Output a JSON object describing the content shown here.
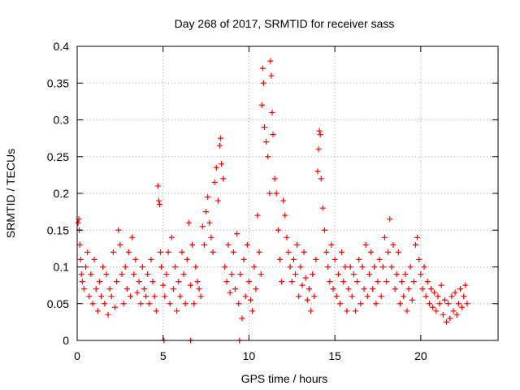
{
  "chart_data": {
    "type": "scatter",
    "title": "Day 268 of 2017, SRMTID for receiver sass",
    "xlabel": "GPS time / hours",
    "ylabel": "SRMTID / TECUs",
    "xlim": [
      0,
      24.5
    ],
    "ylim": [
      0,
      0.4
    ],
    "xticks": [
      0,
      5,
      10,
      15,
      20
    ],
    "xtick_labels": [
      "0",
      "5",
      "10",
      "15",
      "20"
    ],
    "yticks": [
      0,
      0.05,
      0.1,
      0.15,
      0.2,
      0.25,
      0.3,
      0.35,
      0.4
    ],
    "ytick_labels": [
      "0",
      "0.05",
      "0.1",
      "0.15",
      "0.2",
      "0.25",
      "0.3",
      "0.35",
      "0.4"
    ],
    "grid": true,
    "marker": "+",
    "series": [
      {
        "name": "SRMTID",
        "color": "#ff0000",
        "points": [
          [
            0.05,
            0.16
          ],
          [
            0.1,
            0.165
          ],
          [
            0.12,
            0.15
          ],
          [
            0.15,
            0.13
          ],
          [
            0.2,
            0.11
          ],
          [
            0.25,
            0.09
          ],
          [
            0.3,
            0.08
          ],
          [
            0.4,
            0.07
          ],
          [
            0.5,
            0.1
          ],
          [
            0.6,
            0.12
          ],
          [
            0.7,
            0.06
          ],
          [
            0.8,
            0.09
          ],
          [
            0.9,
            0.05
          ],
          [
            1.0,
            0.11
          ],
          [
            1.1,
            0.07
          ],
          [
            1.2,
            0.04
          ],
          [
            1.3,
            0.08
          ],
          [
            1.4,
            0.06
          ],
          [
            1.5,
            0.1
          ],
          [
            1.6,
            0.05
          ],
          [
            1.7,
            0.09
          ],
          [
            1.8,
            0.035
          ],
          [
            1.9,
            0.07
          ],
          [
            2.0,
            0.06
          ],
          [
            2.1,
            0.12
          ],
          [
            2.2,
            0.045
          ],
          [
            2.3,
            0.08
          ],
          [
            2.4,
            0.15
          ],
          [
            2.5,
            0.13
          ],
          [
            2.6,
            0.09
          ],
          [
            2.7,
            0.05
          ],
          [
            2.8,
            0.1
          ],
          [
            2.9,
            0.07
          ],
          [
            3.0,
            0.12
          ],
          [
            3.1,
            0.06
          ],
          [
            3.2,
            0.14
          ],
          [
            3.3,
            0.09
          ],
          [
            3.4,
            0.11
          ],
          [
            3.5,
            0.065
          ],
          [
            3.6,
            0.08
          ],
          [
            3.7,
            0.05
          ],
          [
            3.8,
            0.1
          ],
          [
            3.9,
            0.07
          ],
          [
            4.0,
            0.06
          ],
          [
            4.1,
            0.09
          ],
          [
            4.2,
            0.05
          ],
          [
            4.3,
            0.11
          ],
          [
            4.4,
            0.08
          ],
          [
            4.5,
            0.06
          ],
          [
            4.6,
            0.04
          ],
          [
            4.7,
            0.21
          ],
          [
            4.75,
            0.19
          ],
          [
            4.8,
            0.185
          ],
          [
            4.85,
            0.12
          ],
          [
            4.9,
            0.1
          ],
          [
            5.0,
            0.075
          ],
          [
            5.1,
            0.06
          ],
          [
            5.2,
            0.09
          ],
          [
            5.3,
            0.12
          ],
          [
            5.4,
            0.05
          ],
          [
            5.5,
            0.14
          ],
          [
            5.6,
            0.07
          ],
          [
            5.7,
            0.1
          ],
          [
            5.8,
            0.04
          ],
          [
            5.9,
            0.08
          ],
          [
            6.0,
            0.06
          ],
          [
            6.1,
            0.12
          ],
          [
            6.2,
            0.09
          ],
          [
            6.3,
            0.05
          ],
          [
            6.4,
            0.11
          ],
          [
            6.5,
            0.16
          ],
          [
            6.6,
            0.075
          ],
          [
            6.7,
            0.13
          ],
          [
            6.8,
            0.05
          ],
          [
            6.9,
            0.1
          ],
          [
            7.0,
            0.08
          ],
          [
            7.1,
            0.07
          ],
          [
            7.2,
            0.06
          ],
          [
            7.3,
            0.155
          ],
          [
            7.4,
            0.13
          ],
          [
            7.5,
            0.175
          ],
          [
            7.6,
            0.195
          ],
          [
            7.7,
            0.16
          ],
          [
            7.8,
            0.14
          ],
          [
            7.9,
            0.12
          ],
          [
            8.0,
            0.215
          ],
          [
            8.1,
            0.235
          ],
          [
            8.2,
            0.19
          ],
          [
            8.3,
            0.265
          ],
          [
            8.35,
            0.275
          ],
          [
            8.4,
            0.24
          ],
          [
            8.5,
            0.22
          ],
          [
            8.6,
            0.1
          ],
          [
            8.7,
            0.08
          ],
          [
            8.8,
            0.13
          ],
          [
            8.9,
            0.065
          ],
          [
            9.0,
            0.09
          ],
          [
            9.1,
            0.12
          ],
          [
            9.2,
            0.07
          ],
          [
            9.3,
            0.145
          ],
          [
            9.4,
            0.05
          ],
          [
            9.5,
            0.09
          ],
          [
            9.6,
            0.03
          ],
          [
            9.7,
            0.11
          ],
          [
            9.8,
            0.06
          ],
          [
            9.9,
            0.13
          ],
          [
            10.0,
            0.08
          ],
          [
            10.1,
            0.055
          ],
          [
            10.2,
            0.04
          ],
          [
            10.3,
            0.1
          ],
          [
            10.4,
            0.07
          ],
          [
            10.5,
            0.17
          ],
          [
            10.6,
            0.12
          ],
          [
            10.7,
            0.09
          ],
          [
            10.75,
            0.32
          ],
          [
            10.8,
            0.37
          ],
          [
            10.85,
            0.35
          ],
          [
            10.9,
            0.29
          ],
          [
            11.0,
            0.27
          ],
          [
            11.1,
            0.25
          ],
          [
            11.2,
            0.2
          ],
          [
            11.25,
            0.38
          ],
          [
            11.3,
            0.36
          ],
          [
            11.35,
            0.31
          ],
          [
            11.4,
            0.28
          ],
          [
            11.5,
            0.22
          ],
          [
            11.6,
            0.2
          ],
          [
            11.7,
            0.15
          ],
          [
            11.8,
            0.11
          ],
          [
            11.9,
            0.08
          ],
          [
            12.0,
            0.19
          ],
          [
            12.1,
            0.17
          ],
          [
            12.2,
            0.14
          ],
          [
            12.3,
            0.12
          ],
          [
            12.4,
            0.1
          ],
          [
            12.5,
            0.08
          ],
          [
            12.6,
            0.11
          ],
          [
            12.7,
            0.09
          ],
          [
            12.8,
            0.13
          ],
          [
            12.9,
            0.06
          ],
          [
            13.0,
            0.1
          ],
          [
            13.1,
            0.075
          ],
          [
            13.2,
            0.12
          ],
          [
            13.3,
            0.085
          ],
          [
            13.4,
            0.055
          ],
          [
            13.5,
            0.07
          ],
          [
            13.6,
            0.04
          ],
          [
            13.7,
            0.09
          ],
          [
            13.8,
            0.06
          ],
          [
            13.9,
            0.11
          ],
          [
            14.0,
            0.23
          ],
          [
            14.05,
            0.26
          ],
          [
            14.1,
            0.285
          ],
          [
            14.15,
            0.28
          ],
          [
            14.2,
            0.22
          ],
          [
            14.3,
            0.18
          ],
          [
            14.4,
            0.15
          ],
          [
            14.5,
            0.12
          ],
          [
            14.6,
            0.1
          ],
          [
            14.7,
            0.08
          ],
          [
            14.8,
            0.13
          ],
          [
            14.9,
            0.07
          ],
          [
            15.0,
            0.11
          ],
          [
            15.1,
            0.06
          ],
          [
            15.2,
            0.09
          ],
          [
            15.3,
            0.05
          ],
          [
            15.4,
            0.12
          ],
          [
            15.5,
            0.08
          ],
          [
            15.6,
            0.1
          ],
          [
            15.7,
            0.04
          ],
          [
            15.8,
            0.07
          ],
          [
            15.9,
            0.1
          ],
          [
            16.0,
            0.06
          ],
          [
            16.1,
            0.09
          ],
          [
            16.2,
            0.04
          ],
          [
            16.3,
            0.08
          ],
          [
            16.4,
            0.11
          ],
          [
            16.5,
            0.05
          ],
          [
            16.6,
            0.1
          ],
          [
            16.7,
            0.07
          ],
          [
            16.8,
            0.13
          ],
          [
            16.9,
            0.06
          ],
          [
            17.0,
            0.09
          ],
          [
            17.1,
            0.12
          ],
          [
            17.2,
            0.07
          ],
          [
            17.3,
            0.1
          ],
          [
            17.4,
            0.05
          ],
          [
            17.5,
            0.08
          ],
          [
            17.6,
            0.11
          ],
          [
            17.7,
            0.06
          ],
          [
            17.8,
            0.1
          ],
          [
            17.9,
            0.14
          ],
          [
            18.0,
            0.08
          ],
          [
            18.1,
            0.12
          ],
          [
            18.2,
            0.165
          ],
          [
            18.3,
            0.1
          ],
          [
            18.4,
            0.13
          ],
          [
            18.5,
            0.07
          ],
          [
            18.6,
            0.09
          ],
          [
            18.7,
            0.12
          ],
          [
            18.8,
            0.05
          ],
          [
            18.9,
            0.08
          ],
          [
            19.0,
            0.06
          ],
          [
            19.1,
            0.09
          ],
          [
            19.2,
            0.04
          ],
          [
            19.3,
            0.07
          ],
          [
            19.4,
            0.1
          ],
          [
            19.5,
            0.055
          ],
          [
            19.6,
            0.08
          ],
          [
            19.7,
            0.13
          ],
          [
            19.8,
            0.14
          ],
          [
            19.9,
            0.11
          ],
          [
            20.0,
            0.09
          ],
          [
            20.1,
            0.07
          ],
          [
            20.2,
            0.1
          ],
          [
            20.3,
            0.06
          ],
          [
            20.4,
            0.08
          ],
          [
            20.5,
            0.05
          ],
          [
            20.6,
            0.07
          ],
          [
            20.7,
            0.045
          ],
          [
            20.8,
            0.065
          ],
          [
            20.9,
            0.04
          ],
          [
            21.0,
            0.06
          ],
          [
            21.1,
            0.05
          ],
          [
            21.2,
            0.075
          ],
          [
            21.3,
            0.035
          ],
          [
            21.4,
            0.055
          ],
          [
            21.5,
            0.025
          ],
          [
            21.6,
            0.05
          ],
          [
            21.7,
            0.03
          ],
          [
            21.8,
            0.06
          ],
          [
            21.9,
            0.04
          ],
          [
            22.0,
            0.065
          ],
          [
            22.1,
            0.035
          ],
          [
            22.2,
            0.05
          ],
          [
            22.3,
            0.07
          ],
          [
            22.4,
            0.045
          ],
          [
            22.5,
            0.06
          ],
          [
            22.6,
            0.075
          ],
          [
            22.7,
            0.05
          ],
          [
            5.05,
            0.0
          ],
          [
            6.6,
            0.0
          ],
          [
            9.45,
            0.0
          ]
        ]
      }
    ]
  }
}
